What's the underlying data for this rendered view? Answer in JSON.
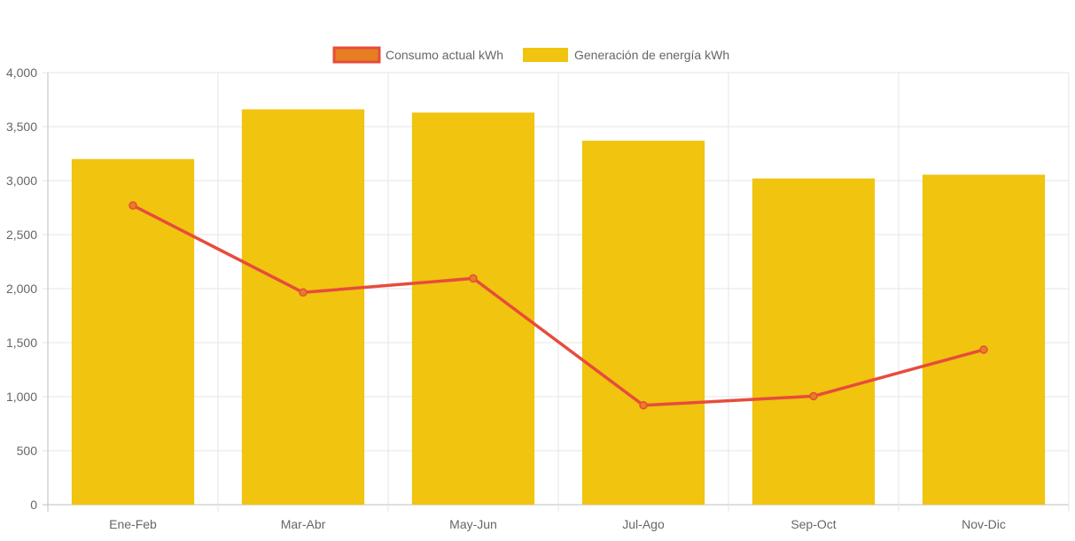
{
  "chart_data": {
    "type": "bar",
    "categories": [
      "Ene-Feb",
      "Mar-Abr",
      "May-Jun",
      "Jul-Ago",
      "Sep-Oct",
      "Nov-Dic"
    ],
    "series": [
      {
        "name": "Generación de energía kWh",
        "type": "bar",
        "color": "#f0c40f",
        "values": [
          3200,
          3660,
          3630,
          3370,
          3020,
          3055
        ]
      },
      {
        "name": "Consumo actual kWh",
        "type": "line",
        "color": "#e74c3c",
        "fill": "#e67e22",
        "values": [
          2770,
          1965,
          2095,
          920,
          1005,
          1435
        ]
      }
    ],
    "ylim": [
      0,
      4000
    ],
    "yticks": [
      "0",
      "500",
      "1,000",
      "1,500",
      "2,000",
      "2,500",
      "3,000",
      "3,500",
      "4,000"
    ],
    "grid": true,
    "legend_position": "top-center",
    "legend_order": [
      "Consumo actual kWh",
      "Generación de energía kWh"
    ]
  }
}
